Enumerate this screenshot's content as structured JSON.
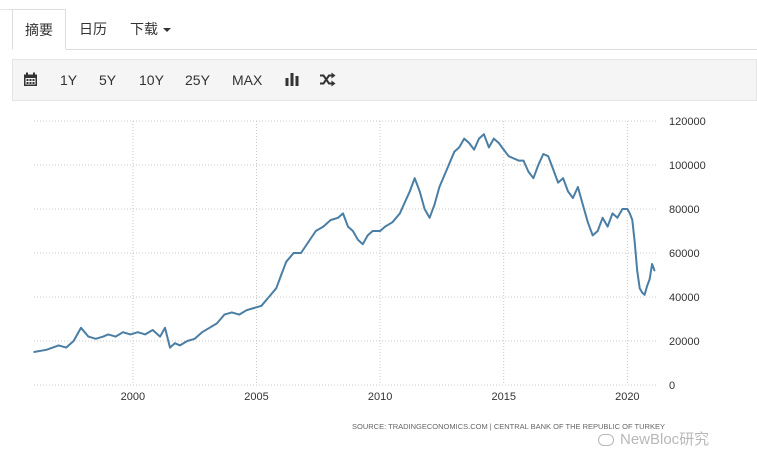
{
  "tabs": [
    {
      "label": "摘要",
      "active": true
    },
    {
      "label": "日历",
      "active": false
    },
    {
      "label": "下载",
      "active": false
    }
  ],
  "toolbar": {
    "icons": [
      "calendar-icon",
      "bar-chart-icon",
      "shuffle-icon"
    ],
    "ranges": [
      "1Y",
      "5Y",
      "10Y",
      "25Y",
      "MAX"
    ]
  },
  "colors": {
    "line": "#4a7ea5",
    "grid": "#c8c8c8",
    "axis": "#333333",
    "source": "#666666"
  },
  "source_text": "SOURCE: TRADINGECONOMICS.COM  |  CENTRAL BANK OF THE REPUBLIC OF TURKEY",
  "watermark_text": "NewBloc研究",
  "chart_data": {
    "type": "line",
    "title": "",
    "xlabel": "",
    "ylabel": "",
    "xlim": [
      1996.0,
      2021.2
    ],
    "ylim": [
      0,
      120000
    ],
    "grid": true,
    "legend": "none",
    "x_ticks": [
      2000,
      2005,
      2010,
      2015,
      2020
    ],
    "x_tick_labels": [
      "2000",
      "2005",
      "2010",
      "2015",
      "2020"
    ],
    "y_ticks": [
      0,
      20000,
      40000,
      60000,
      80000,
      100000,
      120000
    ],
    "y_tick_labels": [
      "0",
      "20000",
      "40000",
      "60000",
      "80000",
      "100000",
      "120000"
    ],
    "series": [
      {
        "x": [
          1996.0,
          1996.5,
          1997.0,
          1997.3,
          1997.6,
          1997.9,
          1998.2,
          1998.5,
          1998.8,
          1999.0,
          1999.3,
          1999.6,
          1999.9,
          2000.2,
          2000.5,
          2000.8,
          2001.1,
          2001.3,
          2001.5,
          2001.7,
          2001.9,
          2002.2,
          2002.5,
          2002.8,
          2003.1,
          2003.4,
          2003.7,
          2004.0,
          2004.3,
          2004.6,
          2004.9,
          2005.2,
          2005.5,
          2005.8,
          2006.0,
          2006.2,
          2006.5,
          2006.8,
          2007.1,
          2007.4,
          2007.7,
          2008.0,
          2008.3,
          2008.5,
          2008.7,
          2008.9,
          2009.1,
          2009.3,
          2009.5,
          2009.7,
          2010.0,
          2010.2,
          2010.5,
          2010.8,
          2011.0,
          2011.2,
          2011.4,
          2011.6,
          2011.8,
          2012.0,
          2012.2,
          2012.4,
          2012.7,
          2013.0,
          2013.2,
          2013.4,
          2013.6,
          2013.8,
          2014.0,
          2014.2,
          2014.4,
          2014.6,
          2014.8,
          2015.0,
          2015.2,
          2015.4,
          2015.6,
          2015.8,
          2016.0,
          2016.2,
          2016.4,
          2016.6,
          2016.8,
          2017.0,
          2017.2,
          2017.4,
          2017.6,
          2017.8,
          2018.0,
          2018.2,
          2018.4,
          2018.6,
          2018.8,
          2019.0,
          2019.2,
          2019.4,
          2019.6,
          2019.8,
          2020.0,
          2020.1,
          2020.2,
          2020.3,
          2020.4,
          2020.5,
          2020.6,
          2020.7,
          2020.8,
          2020.9,
          2021.0,
          2021.1
        ],
        "values": [
          15000,
          16000,
          18000,
          17000,
          20000,
          26000,
          22000,
          21000,
          22000,
          23000,
          22000,
          24000,
          23000,
          24000,
          23000,
          25000,
          22000,
          26000,
          17000,
          19000,
          18000,
          20000,
          21000,
          24000,
          26000,
          28000,
          32000,
          33000,
          32000,
          34000,
          35000,
          36000,
          40000,
          44000,
          50000,
          56000,
          60000,
          60000,
          65000,
          70000,
          72000,
          75000,
          76000,
          78000,
          72000,
          70000,
          66000,
          64000,
          68000,
          70000,
          70000,
          72000,
          74000,
          78000,
          83000,
          88000,
          94000,
          88000,
          80000,
          76000,
          82000,
          90000,
          98000,
          106000,
          108000,
          112000,
          110000,
          107000,
          112000,
          114000,
          108000,
          112000,
          110000,
          107000,
          104000,
          103000,
          102000,
          102000,
          97000,
          94000,
          100000,
          105000,
          104000,
          98000,
          92000,
          94000,
          88000,
          85000,
          90000,
          82000,
          74000,
          68000,
          70000,
          76000,
          72000,
          78000,
          76000,
          80000,
          80000,
          78000,
          75000,
          65000,
          52000,
          44000,
          42000,
          41000,
          45000,
          48000,
          55000,
          52000
        ]
      }
    ]
  }
}
